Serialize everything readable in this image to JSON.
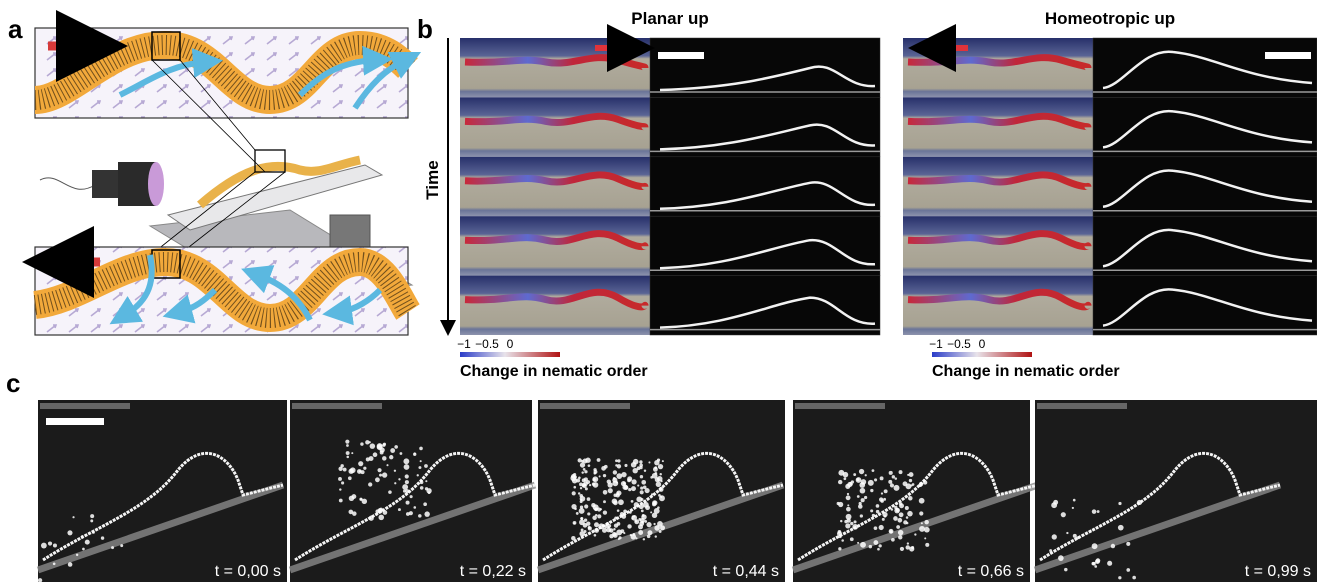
{
  "panels": {
    "a": {
      "label": "a"
    },
    "b": {
      "label": "b",
      "time_axis": "Time",
      "columns": [
        {
          "title": "Planar up",
          "colorbar": {
            "ticks": [
              "−1",
              "−0.5",
              "0"
            ],
            "label": "Change in nematic order"
          }
        },
        {
          "title": "Homeotropic up",
          "colorbar": {
            "ticks": [
              "−1",
              "−0.5",
              "0"
            ],
            "label": "Change in nematic order"
          }
        }
      ]
    },
    "c": {
      "label": "c",
      "frames": [
        "t = 0,00 s",
        "t = 0,22 s",
        "t = 0,44 s",
        "t = 0,66 s",
        "t = 0,99 s"
      ]
    }
  }
}
